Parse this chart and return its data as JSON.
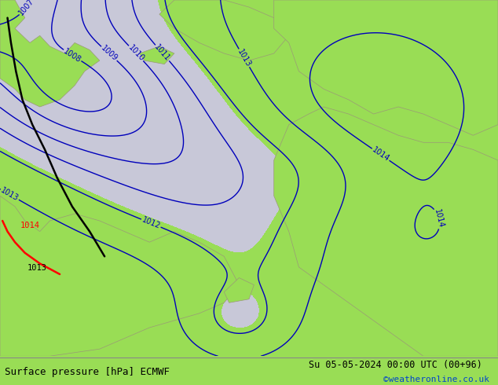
{
  "title_left": "Surface pressure [hPa] ECMWF",
  "title_right": "Su 05-05-2024 00:00 UTC (00+96)",
  "copyright": "©weatheronline.co.uk",
  "bg_color": "#99dd55",
  "sea_color": "#c8c8d8",
  "contour_color": "#0000bb",
  "bottom_text_color": "#000000",
  "copyright_color": "#0044cc",
  "figsize": [
    6.34,
    4.9
  ],
  "dpi": 100
}
